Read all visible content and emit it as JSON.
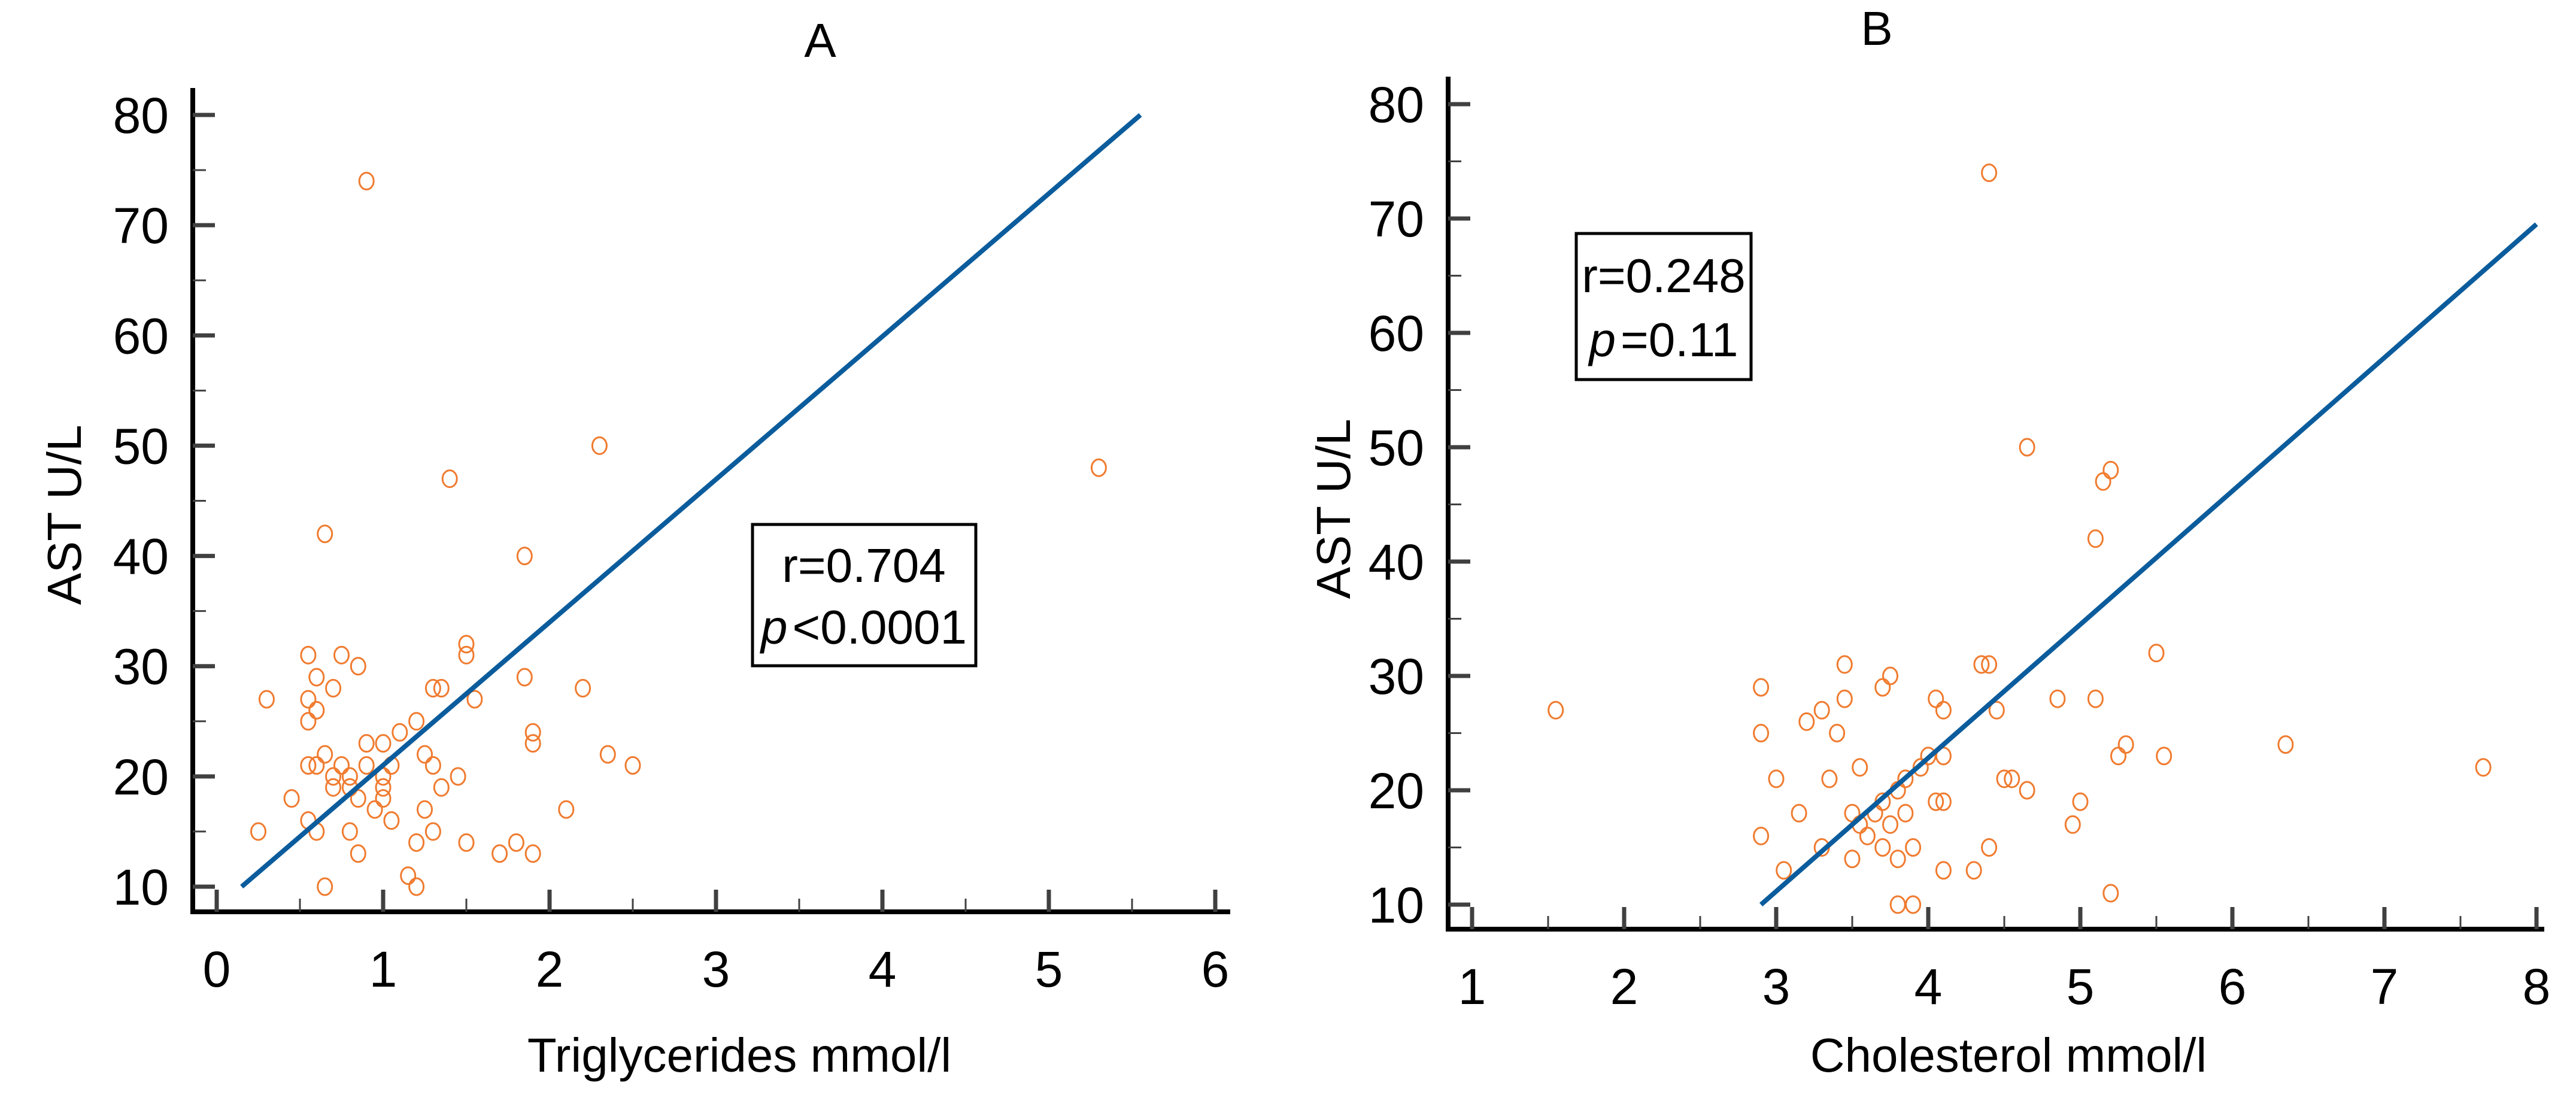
{
  "colors": {
    "point": "#F07B2F",
    "line": "#0B5C9C",
    "axis": "#000000",
    "tick": "#404040"
  },
  "chart_data": [
    {
      "type": "scatter",
      "title": "A",
      "xlabel": "Triglycerides mmol/l",
      "ylabel": "AST U/L",
      "xlim": [
        0,
        6
      ],
      "ylim": [
        10,
        80
      ],
      "xticks": [
        0,
        1,
        2,
        3,
        4,
        5,
        6
      ],
      "yticks": [
        10,
        20,
        30,
        40,
        50,
        60,
        70,
        80
      ],
      "grid": false,
      "annotation": {
        "r_text": "r=0.704",
        "p_italic": "p",
        "p_rest": "<0.0001"
      },
      "regression_line": [
        [
          0.15,
          10
        ],
        [
          5.55,
          80
        ]
      ],
      "points": [
        [
          0.9,
          74
        ],
        [
          2.3,
          50
        ],
        [
          5.3,
          48
        ],
        [
          1.4,
          47
        ],
        [
          0.65,
          42
        ],
        [
          1.85,
          40
        ],
        [
          1.5,
          32
        ],
        [
          0.55,
          31
        ],
        [
          0.75,
          31
        ],
        [
          1.5,
          31
        ],
        [
          0.85,
          30
        ],
        [
          0.6,
          29
        ],
        [
          1.85,
          29
        ],
        [
          1.3,
          28
        ],
        [
          1.35,
          28
        ],
        [
          2.2,
          28
        ],
        [
          0.3,
          27
        ],
        [
          0.55,
          27
        ],
        [
          1.55,
          27
        ],
        [
          0.7,
          28
        ],
        [
          0.6,
          26
        ],
        [
          0.55,
          25
        ],
        [
          1.2,
          25
        ],
        [
          1.1,
          24
        ],
        [
          1.9,
          24
        ],
        [
          0.9,
          23
        ],
        [
          1.0,
          23
        ],
        [
          1.9,
          23
        ],
        [
          1.25,
          22
        ],
        [
          2.35,
          22
        ],
        [
          0.65,
          22
        ],
        [
          0.6,
          21
        ],
        [
          0.55,
          21
        ],
        [
          0.75,
          21
        ],
        [
          0.9,
          21
        ],
        [
          1.05,
          21
        ],
        [
          1.3,
          21
        ],
        [
          2.5,
          21
        ],
        [
          0.7,
          20
        ],
        [
          0.8,
          20
        ],
        [
          1.0,
          20
        ],
        [
          1.45,
          20
        ],
        [
          0.7,
          19
        ],
        [
          0.8,
          19
        ],
        [
          1.0,
          19
        ],
        [
          1.35,
          19
        ],
        [
          0.85,
          18
        ],
        [
          0.45,
          18
        ],
        [
          1.0,
          18
        ],
        [
          1.25,
          17
        ],
        [
          0.95,
          17
        ],
        [
          2.1,
          17
        ],
        [
          1.05,
          16
        ],
        [
          0.8,
          15
        ],
        [
          0.25,
          15
        ],
        [
          0.6,
          15
        ],
        [
          1.3,
          15
        ],
        [
          0.55,
          16
        ],
        [
          1.5,
          14
        ],
        [
          1.8,
          14
        ],
        [
          1.2,
          14
        ],
        [
          0.85,
          13
        ],
        [
          1.7,
          13
        ],
        [
          1.9,
          13
        ],
        [
          1.15,
          11
        ],
        [
          1.2,
          10
        ],
        [
          0.65,
          10
        ]
      ]
    },
    {
      "type": "scatter",
      "title": "B",
      "xlabel": "Cholesterol mmol/l",
      "ylabel": "AST U/L",
      "xlim": [
        1,
        8
      ],
      "ylim": [
        10,
        80
      ],
      "xticks": [
        1,
        2,
        3,
        4,
        5,
        6,
        7,
        8
      ],
      "yticks": [
        10,
        20,
        30,
        40,
        50,
        60,
        70,
        80
      ],
      "grid": false,
      "annotation": {
        "r_text": "r=0.248",
        "p_italic": "p",
        "p_rest": "=0.11"
      },
      "regression_line": [
        [
          2.9,
          10
        ],
        [
          8,
          69.5
        ]
      ],
      "points": [
        [
          1.55,
          27
        ],
        [
          4.4,
          74
        ],
        [
          4.65,
          50
        ],
        [
          5.2,
          48
        ],
        [
          5.15,
          47
        ],
        [
          5.1,
          42
        ],
        [
          5.5,
          32
        ],
        [
          2.9,
          29
        ],
        [
          3.45,
          31
        ],
        [
          4.35,
          31
        ],
        [
          4.4,
          31
        ],
        [
          3.75,
          30
        ],
        [
          3.7,
          29
        ],
        [
          3.2,
          26
        ],
        [
          3.3,
          27
        ],
        [
          3.45,
          28
        ],
        [
          4.05,
          28
        ],
        [
          4.1,
          27
        ],
        [
          4.45,
          27
        ],
        [
          4.85,
          28
        ],
        [
          5.1,
          28
        ],
        [
          2.9,
          25
        ],
        [
          3.4,
          25
        ],
        [
          3.0,
          21
        ],
        [
          3.35,
          21
        ],
        [
          3.55,
          22
        ],
        [
          3.85,
          21
        ],
        [
          3.95,
          22
        ],
        [
          4.0,
          23
        ],
        [
          4.1,
          23
        ],
        [
          4.55,
          21
        ],
        [
          4.5,
          21
        ],
        [
          4.65,
          20
        ],
        [
          5.25,
          23
        ],
        [
          5.3,
          24
        ],
        [
          5.55,
          23
        ],
        [
          6.35,
          24
        ],
        [
          7.65,
          22
        ],
        [
          3.5,
          18
        ],
        [
          3.55,
          17
        ],
        [
          3.7,
          19
        ],
        [
          3.8,
          20
        ],
        [
          3.85,
          18
        ],
        [
          4.05,
          19
        ],
        [
          4.1,
          19
        ],
        [
          3.15,
          18
        ],
        [
          2.9,
          16
        ],
        [
          3.3,
          15
        ],
        [
          3.75,
          17
        ],
        [
          3.6,
          16
        ],
        [
          3.8,
          14
        ],
        [
          3.7,
          15
        ],
        [
          3.5,
          14
        ],
        [
          3.9,
          15
        ],
        [
          4.1,
          13
        ],
        [
          4.3,
          13
        ],
        [
          4.4,
          15
        ],
        [
          4.95,
          17
        ],
        [
          5.0,
          19
        ],
        [
          3.05,
          13
        ],
        [
          3.8,
          10
        ],
        [
          3.9,
          10
        ],
        [
          5.2,
          11
        ],
        [
          3.65,
          18
        ]
      ]
    }
  ]
}
